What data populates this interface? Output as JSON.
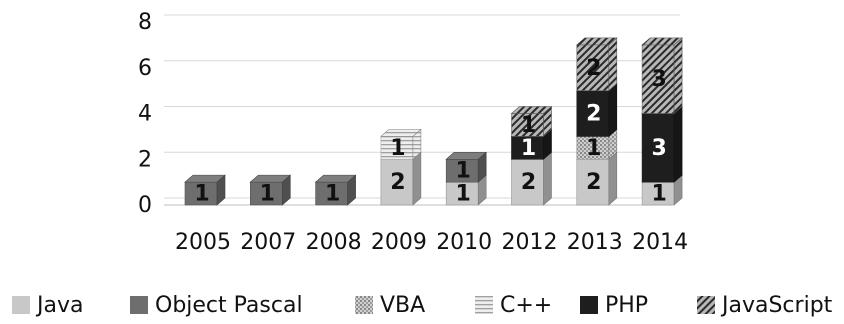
{
  "chart_data": {
    "type": "bar",
    "stacked": true,
    "three_d": true,
    "categories": [
      "2005",
      "2007",
      "2008",
      "2009",
      "2010",
      "2012",
      "2013",
      "2014"
    ],
    "series": [
      {
        "name": "Java",
        "values": [
          0,
          0,
          0,
          2,
          1,
          2,
          2,
          1
        ],
        "color": "#c8c8c8",
        "pattern": "solid"
      },
      {
        "name": "Object Pascal",
        "values": [
          1,
          1,
          1,
          0,
          1,
          0,
          0,
          0
        ],
        "color": "#6e6e6e",
        "pattern": "solid"
      },
      {
        "name": "VBA",
        "values": [
          0,
          0,
          0,
          0,
          0,
          0,
          1,
          0
        ],
        "color": "#bdbdbd",
        "pattern": "dots"
      },
      {
        "name": "C++",
        "values": [
          0,
          0,
          0,
          1,
          0,
          0,
          0,
          0
        ],
        "color": "#e0e0e0",
        "pattern": "lines"
      },
      {
        "name": "PHP",
        "values": [
          0,
          0,
          0,
          0,
          0,
          1,
          2,
          3
        ],
        "color": "#1e1e1e",
        "pattern": "solid"
      },
      {
        "name": "JavaScript",
        "values": [
          0,
          0,
          0,
          0,
          0,
          1,
          2,
          3
        ],
        "color": "#8a8a8a",
        "pattern": "diagonal"
      }
    ],
    "ylim": [
      0,
      8
    ],
    "yticks": [
      "0",
      "2",
      "4",
      "6",
      "8"
    ],
    "grid": true,
    "legend_position": "bottom",
    "data_labels": true
  }
}
